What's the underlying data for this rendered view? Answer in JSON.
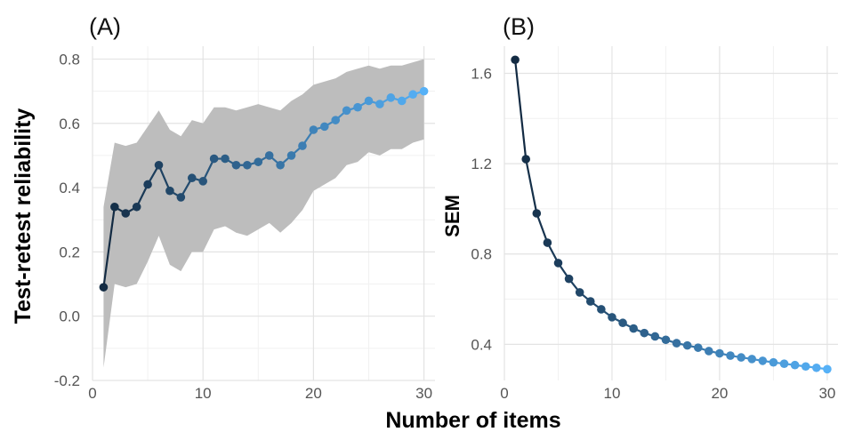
{
  "xlabel": "Number of items",
  "chart_data": [
    {
      "type": "line",
      "panel_label": "(A)",
      "xlabel": "Number of items",
      "ylabel": "Test-retest reliability",
      "xlim": [
        0,
        31
      ],
      "ylim": [
        -0.2,
        0.84
      ],
      "xticks": [
        0,
        10,
        20,
        30
      ],
      "yticks": [
        -0.2,
        0.0,
        0.2,
        0.4,
        0.6,
        0.8
      ],
      "xtick_labels": [
        "0",
        "10",
        "20",
        "30"
      ],
      "ytick_labels": [
        "-0.2",
        "0.0",
        "0.2",
        "0.4",
        "0.6",
        "0.8"
      ],
      "grid": true,
      "ribbon": true,
      "color_gradient": [
        "#132b43",
        "#56b1f7"
      ],
      "series": [
        {
          "x": [
            1,
            2,
            3,
            4,
            5,
            6,
            7,
            8,
            9,
            10,
            11,
            12,
            13,
            14,
            15,
            16,
            17,
            18,
            19,
            20,
            21,
            22,
            23,
            24,
            25,
            26,
            27,
            28,
            29,
            30
          ],
          "y": [
            0.09,
            0.34,
            0.32,
            0.34,
            0.41,
            0.47,
            0.39,
            0.37,
            0.43,
            0.42,
            0.49,
            0.49,
            0.47,
            0.47,
            0.48,
            0.5,
            0.47,
            0.5,
            0.53,
            0.58,
            0.59,
            0.61,
            0.64,
            0.65,
            0.67,
            0.66,
            0.68,
            0.67,
            0.69,
            0.7
          ],
          "lower": [
            -0.16,
            0.1,
            0.09,
            0.1,
            0.17,
            0.25,
            0.16,
            0.14,
            0.2,
            0.2,
            0.27,
            0.28,
            0.26,
            0.25,
            0.27,
            0.29,
            0.26,
            0.29,
            0.33,
            0.39,
            0.41,
            0.43,
            0.47,
            0.48,
            0.51,
            0.5,
            0.52,
            0.52,
            0.54,
            0.55
          ],
          "upper": [
            0.34,
            0.54,
            0.53,
            0.54,
            0.59,
            0.64,
            0.58,
            0.56,
            0.61,
            0.6,
            0.65,
            0.65,
            0.64,
            0.65,
            0.66,
            0.65,
            0.64,
            0.67,
            0.69,
            0.72,
            0.73,
            0.74,
            0.76,
            0.77,
            0.78,
            0.77,
            0.78,
            0.78,
            0.79,
            0.8
          ]
        }
      ]
    },
    {
      "type": "line",
      "panel_label": "(B)",
      "xlabel": "Number of items",
      "ylabel": "SEM",
      "xlim": [
        0,
        31
      ],
      "ylim": [
        0.24,
        1.72
      ],
      "xticks": [
        0,
        10,
        20,
        30
      ],
      "yticks": [
        0.4,
        0.8,
        1.2,
        1.6
      ],
      "xtick_labels": [
        "0",
        "10",
        "20",
        "30"
      ],
      "ytick_labels": [
        "0.4",
        "0.8",
        "1.2",
        "1.6"
      ],
      "grid": true,
      "color_gradient": [
        "#132b43",
        "#56b1f7"
      ],
      "series": [
        {
          "x": [
            1,
            2,
            3,
            4,
            5,
            6,
            7,
            8,
            9,
            10,
            11,
            12,
            13,
            14,
            15,
            16,
            17,
            18,
            19,
            20,
            21,
            22,
            23,
            24,
            25,
            26,
            27,
            28,
            29,
            30
          ],
          "y": [
            1.66,
            1.22,
            0.98,
            0.85,
            0.76,
            0.69,
            0.63,
            0.59,
            0.555,
            0.52,
            0.495,
            0.47,
            0.45,
            0.435,
            0.42,
            0.405,
            0.395,
            0.385,
            0.37,
            0.36,
            0.35,
            0.342,
            0.335,
            0.327,
            0.32,
            0.314,
            0.308,
            0.302,
            0.296,
            0.29
          ]
        }
      ]
    }
  ]
}
